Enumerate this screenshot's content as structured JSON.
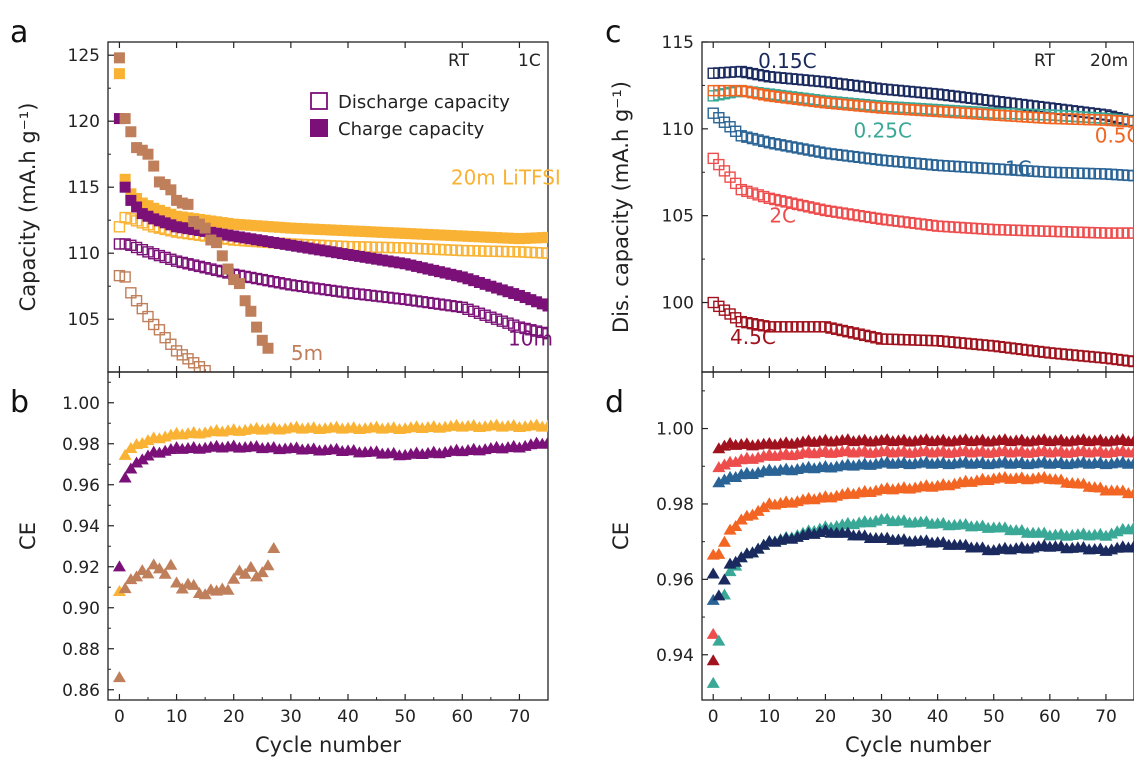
{
  "panels": {
    "a": "a",
    "b": "b",
    "c": "c",
    "d": "d"
  },
  "chart_data": [
    {
      "id": "a",
      "type": "scatter",
      "ylabel": "Capacity (mA.h g⁻¹)",
      "xlabel": "",
      "xlim": [
        -2,
        75
      ],
      "ylim": [
        101,
        126
      ],
      "xticks": [
        0,
        10,
        20,
        30,
        40,
        50,
        60,
        70
      ],
      "yticks": [
        105,
        110,
        115,
        120,
        125
      ],
      "corner_labels": [
        "RT",
        "1C"
      ],
      "legend": {
        "placement": "top-right",
        "entries": [
          {
            "label": "Discharge capacity",
            "marker": "open-square"
          },
          {
            "label": "Charge capacity",
            "marker": "filled-square"
          }
        ]
      },
      "annotations": [
        {
          "text": "20m LiTFSI",
          "color": "#f9b233",
          "x": 58,
          "y": 115.2
        },
        {
          "text": "10m",
          "color": "#7b1178",
          "x": 68,
          "y": 103.0
        },
        {
          "text": "5m",
          "color": "#c07f5b",
          "x": 30,
          "y": 101.9
        }
      ],
      "series": [
        {
          "key": "20m_charge",
          "marker": "filled-square",
          "color": "#f9b233",
          "x": [
            0,
            1,
            2,
            4,
            6,
            10,
            20,
            30,
            40,
            50,
            60,
            70,
            75
          ],
          "y": [
            123.6,
            115.6,
            114.5,
            113.8,
            113.4,
            112.8,
            112.2,
            111.9,
            111.7,
            111.5,
            111.3,
            111.1,
            111.2
          ]
        },
        {
          "key": "20m_discharge",
          "marker": "open-square",
          "color": "#f9b233",
          "x": [
            0,
            1,
            2,
            4,
            6,
            10,
            20,
            30,
            40,
            50,
            60,
            70,
            75
          ],
          "y": [
            112.0,
            112.7,
            112.6,
            112.3,
            112.0,
            111.6,
            111.0,
            110.7,
            110.5,
            110.4,
            110.2,
            110.1,
            110.0
          ]
        },
        {
          "key": "10m_charge",
          "marker": "filled-square",
          "color": "#7b1178",
          "x": [
            0,
            1,
            2,
            4,
            6,
            10,
            20,
            30,
            40,
            50,
            60,
            70,
            75
          ],
          "y": [
            120.2,
            115.0,
            114.0,
            113.0,
            112.6,
            112.0,
            111.3,
            110.6,
            109.9,
            109.2,
            108.2,
            106.8,
            106.0
          ]
        },
        {
          "key": "10m_discharge",
          "marker": "open-square",
          "color": "#7b1178",
          "x": [
            0,
            1,
            2,
            5,
            10,
            20,
            30,
            40,
            50,
            60,
            70,
            75
          ],
          "y": [
            110.7,
            110.7,
            110.6,
            110.1,
            109.4,
            108.4,
            107.6,
            107.0,
            106.5,
            105.9,
            104.4,
            103.9
          ]
        },
        {
          "key": "5m_charge",
          "marker": "filled-square",
          "color": "#c07f5b",
          "x": [
            0,
            1,
            2,
            3,
            4,
            5,
            6,
            7,
            8,
            9,
            10,
            11,
            12,
            13,
            14,
            15,
            16,
            17,
            18,
            19,
            20,
            21,
            22,
            23,
            24,
            25,
            26
          ],
          "y": [
            124.8,
            120.2,
            119.2,
            118.0,
            117.8,
            117.5,
            116.6,
            115.4,
            115.2,
            114.8,
            114.0,
            113.8,
            113.7,
            112.4,
            112.2,
            111.9,
            111.0,
            110.8,
            109.8,
            108.8,
            108.0,
            107.7,
            106.4,
            105.6,
            104.4,
            103.4,
            102.8
          ]
        },
        {
          "key": "5m_discharge",
          "marker": "open-square",
          "color": "#c07f5b",
          "x": [
            0,
            1,
            2,
            3,
            4,
            5,
            6,
            7,
            8,
            9,
            10,
            11,
            12,
            13,
            14,
            15
          ],
          "y": [
            108.3,
            108.2,
            107.0,
            106.4,
            105.8,
            105.2,
            104.6,
            104.2,
            103.6,
            103.1,
            102.6,
            102.3,
            102.0,
            101.7,
            101.4,
            101.1
          ]
        }
      ]
    },
    {
      "id": "b",
      "type": "scatter",
      "ylabel": "CE",
      "xlabel": "Cycle number",
      "xlim": [
        -2,
        75
      ],
      "ylim": [
        0.855,
        1.015
      ],
      "xticks": [
        0,
        10,
        20,
        30,
        40,
        50,
        60,
        70
      ],
      "yticks": [
        0.86,
        0.88,
        0.9,
        0.92,
        0.94,
        0.96,
        0.98,
        1.0
      ],
      "tick_labels_x": [
        "0",
        "10",
        "20",
        "30",
        "40",
        "50",
        "60",
        "70"
      ],
      "tick_labels_y": [
        "0.86",
        "0.88",
        "0.90",
        "0.92",
        "0.94",
        "0.96",
        "0.98",
        "1.00"
      ],
      "series": [
        {
          "key": "20m_CE",
          "marker": "filled-triangle",
          "color": "#f9b233",
          "x": [
            0,
            1,
            2,
            4,
            6,
            10,
            20,
            30,
            40,
            50,
            60,
            70,
            75
          ],
          "y": [
            0.909,
            0.975,
            0.978,
            0.981,
            0.983,
            0.985,
            0.987,
            0.988,
            0.988,
            0.988,
            0.989,
            0.989,
            0.989
          ]
        },
        {
          "key": "10m_CE",
          "marker": "filled-triangle",
          "color": "#7b1178",
          "x": [
            0,
            1,
            2,
            4,
            6,
            10,
            20,
            30,
            40,
            50,
            60,
            70,
            75
          ],
          "y": [
            0.921,
            0.964,
            0.968,
            0.973,
            0.976,
            0.978,
            0.979,
            0.978,
            0.977,
            0.975,
            0.977,
            0.979,
            0.981
          ]
        },
        {
          "key": "5m_CE",
          "marker": "filled-triangle",
          "color": "#c07f5b",
          "x": [
            0,
            1,
            2,
            3,
            4,
            5,
            6,
            7,
            8,
            9,
            10,
            11,
            12,
            13,
            14,
            15,
            16,
            17,
            18,
            19,
            20,
            21,
            22,
            23,
            24,
            25,
            26,
            27
          ],
          "y": [
            0.867,
            0.91,
            0.914,
            0.915,
            0.919,
            0.917,
            0.921,
            0.92,
            0.917,
            0.921,
            0.912,
            0.91,
            0.912,
            0.911,
            0.908,
            0.907,
            0.909,
            0.908,
            0.91,
            0.909,
            0.914,
            0.919,
            0.917,
            0.92,
            0.915,
            0.918,
            0.921,
            0.929
          ]
        }
      ]
    },
    {
      "id": "c",
      "type": "scatter",
      "ylabel": "Dis. capacity (mA.h g⁻¹)",
      "xlabel": "",
      "xlim": [
        -2,
        75
      ],
      "ylim": [
        96,
        115
      ],
      "xticks": [
        0,
        10,
        20,
        30,
        40,
        50,
        60,
        70
      ],
      "yticks": [
        100,
        105,
        110,
        115
      ],
      "corner_labels": [
        "RT",
        "20m"
      ],
      "annotations": [
        {
          "text": "0.15C",
          "color": "#1a2a5e",
          "x": 8,
          "y": 113.5
        },
        {
          "text": "0.25C",
          "color": "#3aa896",
          "x": 25,
          "y": 109.5
        },
        {
          "text": "0.5C",
          "color": "#f26522",
          "x": 68,
          "y": 109.2
        },
        {
          "text": "1C",
          "color": "#2a6496",
          "x": 52,
          "y": 107.3
        },
        {
          "text": "2C",
          "color": "#ee4d4d",
          "x": 10,
          "y": 104.6
        },
        {
          "text": "4.5C",
          "color": "#a0121d",
          "x": 3,
          "y": 97.6
        }
      ],
      "series": [
        {
          "key": "0.15C",
          "marker": "open-square",
          "color": "#1a2a5e",
          "x": [
            0,
            5,
            10,
            20,
            30,
            40,
            50,
            60,
            70,
            75
          ],
          "y": [
            113.2,
            113.3,
            113.0,
            112.7,
            112.3,
            112.0,
            111.6,
            111.2,
            110.8,
            110.4
          ]
        },
        {
          "key": "0.25C",
          "marker": "open-square",
          "color": "#3aa896",
          "x": [
            0,
            5,
            10,
            20,
            30,
            40,
            50,
            60,
            70,
            75
          ],
          "y": [
            111.9,
            112.2,
            112.0,
            111.6,
            111.3,
            111.1,
            110.9,
            110.8,
            110.6,
            110.4
          ]
        },
        {
          "key": "0.5C",
          "marker": "open-square",
          "color": "#f26522",
          "x": [
            0,
            5,
            10,
            20,
            30,
            40,
            50,
            60,
            70,
            75
          ],
          "y": [
            112.2,
            112.2,
            111.9,
            111.5,
            111.2,
            111.0,
            110.8,
            110.6,
            110.5,
            110.4
          ]
        },
        {
          "key": "1C",
          "marker": "open-square",
          "color": "#2a6496",
          "x": [
            0,
            5,
            10,
            20,
            30,
            40,
            50,
            60,
            70,
            75
          ],
          "y": [
            110.9,
            109.6,
            109.2,
            108.6,
            108.2,
            107.9,
            107.7,
            107.5,
            107.4,
            107.3
          ]
        },
        {
          "key": "2C",
          "marker": "open-square",
          "color": "#ee4d4d",
          "x": [
            0,
            5,
            10,
            20,
            30,
            40,
            50,
            60,
            70,
            75
          ],
          "y": [
            108.3,
            106.5,
            106.0,
            105.3,
            104.8,
            104.4,
            104.2,
            104.1,
            104.0,
            104.0
          ]
        },
        {
          "key": "4.5C",
          "marker": "open-square",
          "color": "#a0121d",
          "x": [
            0,
            5,
            10,
            20,
            30,
            40,
            50,
            60,
            70,
            75
          ],
          "y": [
            100.0,
            98.9,
            98.6,
            98.6,
            97.9,
            97.8,
            97.5,
            97.1,
            96.8,
            96.6
          ]
        }
      ]
    },
    {
      "id": "d",
      "type": "scatter",
      "ylabel": "CE",
      "xlabel": "Cycle number",
      "xlim": [
        -2,
        75
      ],
      "ylim": [
        0.928,
        1.015
      ],
      "xticks": [
        0,
        10,
        20,
        30,
        40,
        50,
        60,
        70
      ],
      "yticks": [
        0.94,
        0.96,
        0.98,
        1.0
      ],
      "tick_labels_x": [
        "0",
        "10",
        "20",
        "30",
        "40",
        "50",
        "60",
        "70"
      ],
      "tick_labels_y": [
        "0.94",
        "0.96",
        "0.98",
        "1.00"
      ],
      "series": [
        {
          "key": "4.5C_CE",
          "marker": "filled-triangle",
          "color": "#a0121d",
          "x": [
            0,
            1,
            3,
            5,
            10,
            20,
            30,
            40,
            50,
            60,
            70,
            75
          ],
          "y": [
            0.939,
            0.995,
            0.996,
            0.996,
            0.996,
            0.997,
            0.997,
            0.997,
            0.997,
            0.997,
            0.997,
            0.997
          ]
        },
        {
          "key": "2C_CE",
          "marker": "filled-triangle",
          "color": "#ee4d4d",
          "x": [
            0,
            1,
            3,
            5,
            10,
            20,
            30,
            40,
            50,
            60,
            70,
            75
          ],
          "y": [
            0.946,
            0.99,
            0.991,
            0.992,
            0.993,
            0.994,
            0.994,
            0.994,
            0.994,
            0.994,
            0.994,
            0.994
          ]
        },
        {
          "key": "1C_CE",
          "marker": "filled-triangle",
          "color": "#2a6496",
          "x": [
            0,
            1,
            3,
            5,
            10,
            20,
            30,
            40,
            50,
            60,
            70,
            75
          ],
          "y": [
            0.955,
            0.986,
            0.987,
            0.988,
            0.989,
            0.99,
            0.991,
            0.991,
            0.991,
            0.991,
            0.991,
            0.991
          ]
        },
        {
          "key": "0.5C_CE",
          "marker": "filled-triangle",
          "color": "#f26522",
          "x": [
            0,
            1,
            2,
            3,
            5,
            10,
            20,
            30,
            40,
            50,
            60,
            70,
            75
          ],
          "y": [
            0.967,
            0.967,
            0.97,
            0.973,
            0.976,
            0.98,
            0.982,
            0.984,
            0.985,
            0.987,
            0.987,
            0.984,
            0.983
          ]
        },
        {
          "key": "0.25C_CE",
          "marker": "filled-triangle",
          "color": "#3aa896",
          "x": [
            0,
            1,
            2,
            3,
            5,
            10,
            20,
            30,
            40,
            50,
            60,
            70,
            75
          ],
          "y": [
            0.933,
            0.944,
            0.956,
            0.962,
            0.966,
            0.97,
            0.974,
            0.976,
            0.975,
            0.974,
            0.972,
            0.972,
            0.974
          ]
        },
        {
          "key": "0.15C_CE",
          "marker": "filled-triangle",
          "color": "#1a2a5e",
          "x": [
            0,
            1,
            2,
            3,
            5,
            10,
            20,
            30,
            40,
            50,
            60,
            70,
            75
          ],
          "y": [
            0.962,
            0.956,
            0.96,
            0.964,
            0.966,
            0.97,
            0.973,
            0.971,
            0.97,
            0.968,
            0.969,
            0.968,
            0.969
          ]
        }
      ]
    }
  ]
}
